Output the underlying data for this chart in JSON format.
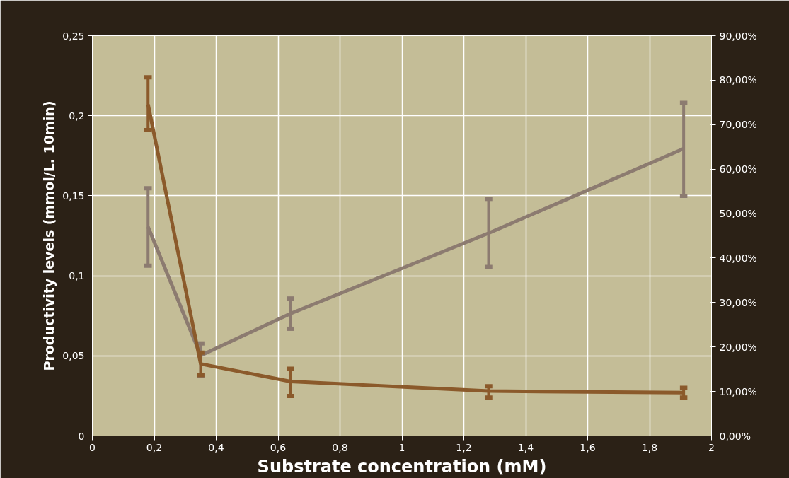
{
  "chart_data": {
    "type": "line",
    "xlabel": "Substrate concentration (mM)",
    "ylabel": "Productivity levels (mmol/L. 10min)",
    "x": [
      0.18,
      0.35,
      0.64,
      1.28,
      1.91
    ],
    "series": [
      {
        "color": "#8c7b70",
        "axis": "y2",
        "values": [
          47.0,
          18.1,
          27.5,
          45.6,
          64.6
        ],
        "errors": [
          [
            38.3,
            55.7
          ],
          [
            13.5,
            20.8
          ],
          [
            24.1,
            30.9
          ],
          [
            38.0,
            53.3
          ],
          [
            54.0,
            74.9
          ]
        ]
      },
      {
        "color": "#8b5a2b",
        "values": [
          0.207,
          0.045,
          0.034,
          0.028,
          0.027
        ],
        "errors": [
          [
            0.191,
            0.224
          ],
          [
            0.038,
            0.052
          ],
          [
            0.025,
            0.042
          ],
          [
            0.024,
            0.031
          ],
          [
            0.024,
            0.03
          ]
        ]
      }
    ],
    "xlim": [
      0,
      2
    ],
    "ylim": [
      0,
      0.25
    ],
    "y2lim": [
      0,
      90
    ],
    "xticks": [
      0,
      {
        "value": 0.2,
        "label": "0,2"
      },
      {
        "value": 0.4,
        "label": "0,4"
      },
      {
        "value": 0.6,
        "label": "0,6"
      },
      {
        "value": 0.8,
        "label": "0,8"
      },
      1,
      {
        "value": 1.2,
        "label": "1,2"
      },
      {
        "value": 1.4,
        "label": "1,4"
      },
      {
        "value": 1.6,
        "label": "1,6"
      },
      {
        "value": 1.8,
        "label": "1,8"
      },
      2
    ],
    "yticks": [
      0,
      {
        "value": 0.05,
        "label": "0,05"
      },
      {
        "value": 0.1,
        "label": "0,1"
      },
      {
        "value": 0.15,
        "label": "0,15"
      },
      {
        "value": 0.2,
        "label": "0,2"
      },
      {
        "value": 0.25,
        "label": "0,25"
      }
    ],
    "y2ticks": [
      {
        "value": 0,
        "label": "0,00%"
      },
      {
        "value": 10,
        "label": "10,00%"
      },
      {
        "value": 20,
        "label": "20,00%"
      },
      {
        "value": 30,
        "label": "30,00%"
      },
      {
        "value": 40,
        "label": "40,00%"
      },
      {
        "value": 50,
        "label": "50,00%"
      },
      {
        "value": 60,
        "label": "60,00%"
      },
      {
        "value": 70,
        "label": "70,00%"
      },
      {
        "value": 80,
        "label": "80,00%"
      },
      {
        "value": 90,
        "label": "90,00%"
      }
    ],
    "grid": true,
    "marker": "none",
    "line_style": "solid"
  }
}
